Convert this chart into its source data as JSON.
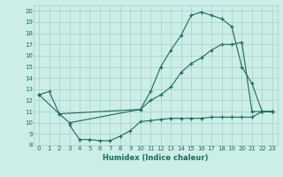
{
  "xlabel": "Humidex (Indice chaleur)",
  "xlim": [
    -0.5,
    23.5
  ],
  "ylim": [
    8,
    20.5
  ],
  "xticks": [
    0,
    1,
    2,
    3,
    4,
    5,
    6,
    7,
    8,
    9,
    10,
    11,
    12,
    13,
    14,
    15,
    16,
    17,
    18,
    19,
    20,
    21,
    22,
    23
  ],
  "yticks": [
    8,
    9,
    10,
    11,
    12,
    13,
    14,
    15,
    16,
    17,
    18,
    19,
    20
  ],
  "bg_color": "#cceee8",
  "grid_color": "#aacccc",
  "line_color": "#1a6b5a",
  "curve1_x": [
    0,
    1,
    2,
    3,
    10,
    11,
    12,
    13,
    14,
    15,
    16,
    17,
    18,
    19,
    20,
    21,
    22,
    23
  ],
  "curve1_y": [
    12.5,
    12.8,
    10.8,
    10.0,
    11.2,
    12.8,
    15.0,
    16.5,
    17.8,
    19.6,
    19.9,
    19.6,
    19.3,
    18.6,
    15.0,
    13.5,
    11.0,
    11.0
  ],
  "curve2_x": [
    0,
    2,
    10,
    11,
    12,
    13,
    14,
    15,
    16,
    17,
    18,
    19,
    20,
    21,
    22,
    23
  ],
  "curve2_y": [
    12.5,
    10.8,
    11.2,
    12.0,
    12.5,
    13.2,
    14.5,
    15.3,
    15.8,
    16.5,
    17.0,
    17.0,
    17.2,
    11.0,
    11.0,
    11.0
  ],
  "curve3_x": [
    3,
    4,
    5,
    6,
    7,
    8,
    9,
    10,
    11,
    12,
    13,
    14,
    15,
    16,
    17,
    18,
    19,
    20,
    21,
    22,
    23
  ],
  "curve3_y": [
    9.8,
    8.5,
    8.5,
    8.4,
    8.4,
    8.8,
    9.3,
    10.1,
    10.2,
    10.3,
    10.4,
    10.4,
    10.4,
    10.4,
    10.5,
    10.5,
    10.5,
    10.5,
    10.5,
    11.0,
    11.0
  ]
}
